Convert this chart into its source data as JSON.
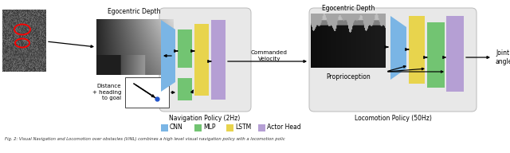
{
  "cnn_color": "#7ab5e5",
  "mlp_color": "#72c472",
  "lstm_color": "#e8d44d",
  "actor_color": "#b59fd4",
  "box_bg": "#e8e8e8",
  "box_border": "#bbbbbb",
  "legend_items": [
    {
      "label": "CNN",
      "color": "#7ab5e5"
    },
    {
      "label": "MLP",
      "color": "#72c472"
    },
    {
      "label": "LSTM",
      "color": "#e8d44d"
    },
    {
      "label": "Actor Head",
      "color": "#b59fd4"
    }
  ],
  "nav_label": "Navigation Policy (2Hz)",
  "loco_label": "Locomotion Policy (50Hz)",
  "cmd_vel_label": "Commanded\nVelocity",
  "ego_depth_label": "Egocentric Depth",
  "proprioception_label": "Proprioception",
  "dist_heading_label": "Distance\n+ heading\nto goal",
  "joint_angles_label": "Joint\nangles",
  "caption": "Fig. 2: Visual Navigation and Locomotion over obstacles (ViNL) combines a high level visual navigation policy with a locomotion polic"
}
